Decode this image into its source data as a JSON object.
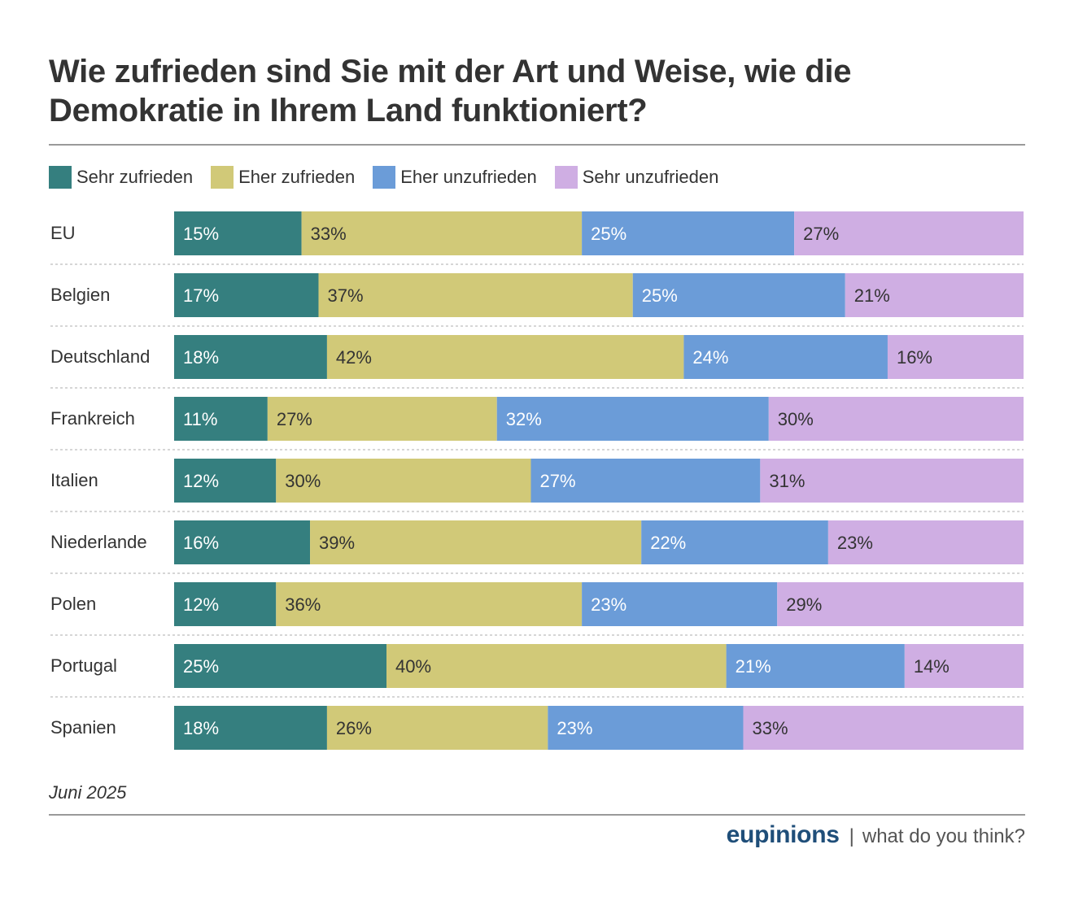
{
  "title": "Wie zufrieden sind Sie mit der Art und Weise, wie die Demokratie in Ihrem Land funktioniert?",
  "footnote": "Juni 2025",
  "brand": {
    "name": "eupinions",
    "separator": "|",
    "tagline": "what do you think?"
  },
  "chart_data": {
    "type": "bar",
    "orientation": "horizontal",
    "stacked": true,
    "normalized": true,
    "value_unit": "%",
    "categories": [
      "EU",
      "Belgien",
      "Deutschland",
      "Frankreich",
      "Italien",
      "Niederlande",
      "Polen",
      "Portugal",
      "Spanien"
    ],
    "series": [
      {
        "name": "Sehr zufrieden",
        "color": "#357f7f",
        "label_color": "#ffffff",
        "values": [
          15,
          17,
          18,
          11,
          12,
          16,
          12,
          25,
          18
        ]
      },
      {
        "name": "Eher zufrieden",
        "color": "#d1c978",
        "label_color": "#333333",
        "values": [
          33,
          37,
          42,
          27,
          30,
          39,
          36,
          40,
          26
        ]
      },
      {
        "name": "Eher unzufrieden",
        "color": "#6b9cd8",
        "label_color": "#ffffff",
        "values": [
          25,
          25,
          24,
          32,
          27,
          22,
          23,
          21,
          23
        ]
      },
      {
        "name": "Sehr unzufrieden",
        "color": "#cfaee3",
        "label_color": "#333333",
        "values": [
          27,
          21,
          16,
          30,
          31,
          23,
          29,
          14,
          33
        ]
      }
    ],
    "legend_position": "top-left",
    "grid": false,
    "axes_visible": false
  }
}
